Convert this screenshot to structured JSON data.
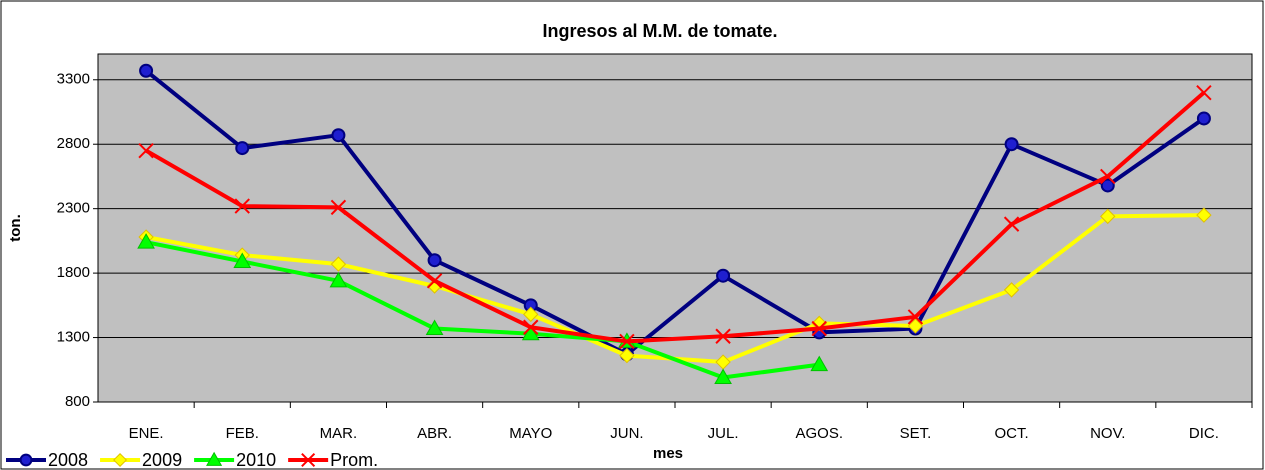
{
  "chart_data": {
    "type": "line",
    "title": "Ingresos al M.M. de tomate.",
    "y_label": "ton.",
    "x_label": "mes",
    "categories": [
      "ENE.",
      "FEB.",
      "MAR.",
      "ABR.",
      "MAYO",
      "JUN.",
      "JUL.",
      "AGOS.",
      "SET.",
      "OCT.",
      "NOV.",
      "DIC."
    ],
    "series": [
      {
        "name": "2008",
        "color": "#000080",
        "marker": "circle",
        "values": [
          3370,
          2770,
          2870,
          1900,
          1550,
          1170,
          1780,
          1340,
          1370,
          2800,
          2480,
          3000
        ]
      },
      {
        "name": "2009",
        "color": "#ffff00",
        "marker": "diamond",
        "values": [
          2080,
          1940,
          1870,
          1700,
          1480,
          1160,
          1110,
          1410,
          1390,
          1670,
          2240,
          2250
        ]
      },
      {
        "name": "2010",
        "color": "#00ff00",
        "marker": "triangle",
        "values": [
          2040,
          1890,
          1740,
          1370,
          1330,
          1270,
          990,
          1090,
          null,
          null,
          null,
          null
        ]
      },
      {
        "name": "Prom.",
        "color": "#ff0000",
        "marker": "x",
        "values": [
          2750,
          2320,
          2310,
          1740,
          1380,
          1270,
          1310,
          1370,
          1460,
          2180,
          2550,
          3200
        ]
      }
    ],
    "ylim": [
      800,
      3500
    ],
    "yticks": [
      800,
      1300,
      1800,
      2300,
      2800,
      3300
    ],
    "grid": true,
    "plot_background": "#c0c0c0",
    "legend": "bottom-left"
  }
}
